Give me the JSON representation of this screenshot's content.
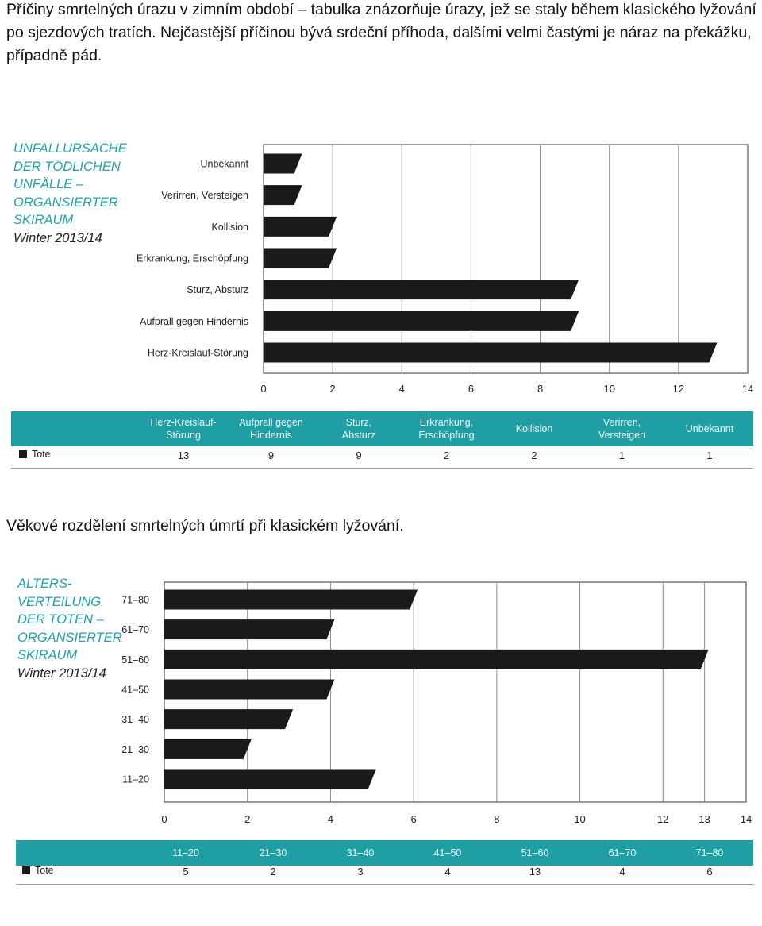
{
  "captions": {
    "chart1": "Příčiny smrtelných úrazu v zimním období – tabulka znázorňuje úrazy, jež se staly během klasického lyžování po sjezdových tratích.  Nejčastější příčinou bývá srdeční příhoda, dalšími velmi častými je náraz na překážku, případně pád.",
    "chart2": "Věkové rozdělení smrtelných úmrtí při klasickém lyžování."
  },
  "chart_data": [
    {
      "type": "bar",
      "orientation": "horizontal",
      "title_lines": [
        "UNFALLURSACHE",
        "DER TÖDLICHEN",
        "UNFÄLLE –",
        "ORGANSIERTER",
        "SKIRAUM"
      ],
      "subtitle": "Winter 2013/14",
      "categories": [
        "Unbekannt",
        "Verirren, Versteigen",
        "Kollision",
        "Erkrankung, Erschöpfung",
        "Sturz, Absturz",
        "Aufprall gegen Hindernis",
        "Herz-Kreislauf-Störung"
      ],
      "values": [
        1,
        1,
        2,
        2,
        9,
        9,
        13
      ],
      "xlim": [
        0,
        14
      ],
      "xticks": [
        "0",
        "2",
        "4",
        "6",
        "8",
        "10",
        "12",
        "14"
      ],
      "grid": true,
      "table": {
        "headers": [
          [
            "Herz-Kreislauf-",
            "Störung"
          ],
          [
            "Aufprall gegen",
            "Hindernis"
          ],
          [
            "Sturz,",
            "Absturz"
          ],
          [
            "Erkrankung,",
            "Erschöpfung"
          ],
          [
            "Kollision"
          ],
          [
            "Verirren,",
            "Versteigen"
          ],
          [
            "Unbekannt"
          ]
        ],
        "row_label": "Tote",
        "values": [
          "13",
          "9",
          "9",
          "2",
          "2",
          "1",
          "1"
        ]
      },
      "colors": {
        "bar": "#1a1a1a",
        "band": "#1f9ea4",
        "title": "#1fa3aa"
      }
    },
    {
      "type": "bar",
      "orientation": "horizontal",
      "title_lines": [
        "ALTERS-",
        "VERTEILUNG",
        "DER TOTEN –",
        "ORGANSIERTER",
        "SKIRAUM"
      ],
      "subtitle": "Winter 2013/14",
      "categories": [
        "71–80",
        "61–70",
        "51–60",
        "41–50",
        "31–40",
        "21–30",
        "11–20"
      ],
      "values": [
        6,
        4,
        13,
        4,
        3,
        2,
        5
      ],
      "xlim": [
        0,
        14
      ],
      "xticks": [
        "0",
        "2",
        "4",
        "6",
        "8",
        "10",
        "12",
        "13",
        "14"
      ],
      "grid": true,
      "table": {
        "headers": [
          [
            "11–20"
          ],
          [
            "21–30"
          ],
          [
            "31–40"
          ],
          [
            "41–50"
          ],
          [
            "51–60"
          ],
          [
            "61–70"
          ],
          [
            "71–80"
          ]
        ],
        "row_label": "Tote",
        "values": [
          "5",
          "2",
          "3",
          "4",
          "13",
          "4",
          "6"
        ]
      },
      "colors": {
        "bar": "#1a1a1a",
        "band": "#1f9ea4",
        "title": "#1fa3aa"
      }
    }
  ]
}
